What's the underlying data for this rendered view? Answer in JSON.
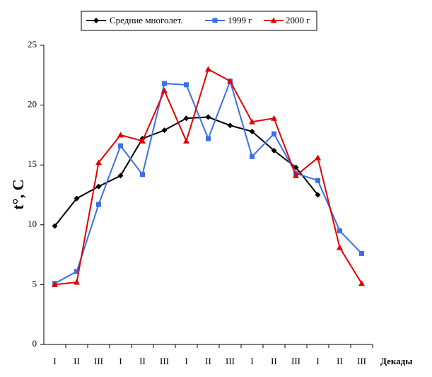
{
  "chart_data": {
    "type": "line",
    "y_label": "t°, C",
    "x_label": "Декады",
    "categories": [
      "I",
      "II",
      "III",
      "I",
      "II",
      "III",
      "I",
      "II",
      "III",
      "I",
      "II",
      "III",
      "I",
      "II",
      "III"
    ],
    "series": [
      {
        "name": "Средние многолет.",
        "color": "#000000",
        "marker": "diamond",
        "values": [
          9.9,
          12.2,
          13.2,
          14.1,
          17.2,
          17.9,
          18.9,
          19.0,
          18.3,
          17.8,
          16.2,
          14.8,
          12.5,
          null,
          null
        ]
      },
      {
        "name": "1999 г",
        "color": "#3a6fe8",
        "marker": "square",
        "values": [
          5.1,
          6.1,
          11.7,
          16.6,
          14.2,
          21.8,
          21.7,
          17.2,
          22.0,
          15.7,
          17.6,
          14.3,
          13.7,
          9.5,
          7.6
        ]
      },
      {
        "name": "2000 г",
        "color": "#e00000",
        "marker": "triangle",
        "values": [
          5.0,
          5.2,
          15.2,
          17.5,
          17.0,
          21.2,
          17.0,
          23.0,
          22.0,
          18.6,
          18.9,
          14.1,
          15.6,
          8.1,
          5.1
        ]
      }
    ],
    "ylim": [
      0,
      25
    ],
    "yticks": [
      0,
      5,
      10,
      15,
      20,
      25
    ],
    "grid": false,
    "legend": "top"
  }
}
